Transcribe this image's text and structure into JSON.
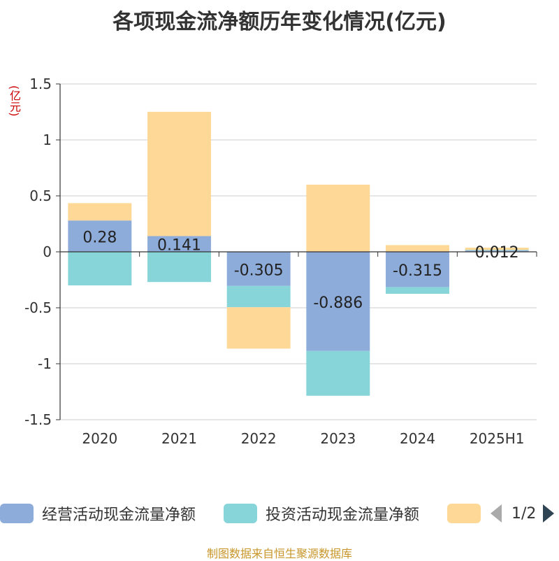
{
  "title": "各项现金流净额历年变化情况(亿元)",
  "unit_label": "(亿元)",
  "footer": "制图数据来自恒生聚源数据库",
  "pager": {
    "text": "1/2"
  },
  "colors": {
    "operating": "#8eacd9",
    "investing": "#87d5d8",
    "financing": "#fed897",
    "axis": "#333333",
    "grid": "#cccccc"
  },
  "chart_data": {
    "type": "bar",
    "stacked": true,
    "title": "各项现金流净额历年变化情况(亿元)",
    "ylabel": "(亿元)",
    "categories": [
      "2020",
      "2021",
      "2022",
      "2023",
      "2024",
      "2025H1"
    ],
    "ylim": [
      -1.5,
      1.5
    ],
    "yticks": [
      1.5,
      1,
      0.5,
      0,
      -0.5,
      -1,
      -1.5
    ],
    "ytick_labels": [
      "1.5",
      "1",
      "0.5",
      "0",
      "-0.5",
      "-1",
      "-1.5"
    ],
    "grid": true,
    "legend_position": "bottom",
    "series": [
      {
        "name": "经营活动现金流量净额",
        "values": [
          0.28,
          0.141,
          -0.305,
          -0.886,
          -0.315,
          0.012
        ],
        "labels": [
          "0.28",
          "0.141",
          "-0.305",
          "-0.886",
          "-0.315",
          "0.012"
        ]
      },
      {
        "name": "投资活动现金流量净额",
        "values": [
          -0.3,
          -0.27,
          -0.19,
          -0.4,
          -0.06,
          0.005
        ]
      },
      {
        "name": "",
        "values": [
          0.155,
          1.11,
          -0.37,
          0.6,
          0.06,
          0.02
        ]
      }
    ]
  }
}
